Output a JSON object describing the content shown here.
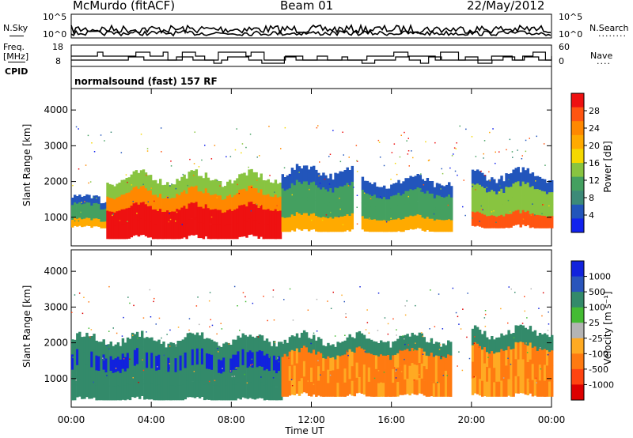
{
  "header": {
    "station": "McMurdo (fitACF)",
    "beam": "Beam 01",
    "date": "22/May/2012"
  },
  "noise_panel": {
    "left_label": "N.Sky",
    "right_label": "N.Search",
    "right_dots": "........",
    "left_ticks": [
      "10^5",
      "10^0"
    ],
    "right_ticks": [
      "10^5",
      "10^0"
    ]
  },
  "freq_panel": {
    "left_label_1": "Freq.",
    "left_label_2": "[MHz]",
    "left_ticks": [
      "18",
      "8"
    ],
    "right_label": "Nave",
    "right_dots": "....",
    "right_ticks": [
      "60",
      "0"
    ]
  },
  "cpid": {
    "label": "CPID",
    "value": "normalsound (fast) 157 RF"
  },
  "chart_data": [
    {
      "type": "heatmap",
      "title": "Power",
      "xlabel": "",
      "ylabel": "Slant Range [km]",
      "xlim": [
        "00:00",
        "00:00"
      ],
      "ylim": [
        200,
        4600
      ],
      "yticks": [
        "1000",
        "2000",
        "3000",
        "4000"
      ],
      "colorbar": {
        "label": "Power [dB]",
        "ticks": [
          "28",
          "24",
          "20",
          "16",
          "12",
          "8",
          "4"
        ],
        "colors": [
          "#ee1111",
          "#ff5511",
          "#ff8800",
          "#ffaa00",
          "#f5d800",
          "#88c440",
          "#44a060",
          "#3c8a78",
          "#2255bb",
          "#1122ee"
        ]
      },
      "echo_regions": [
        {
          "t_start": "00:00",
          "t_end": "01:45",
          "range_min": 700,
          "range_max": 1500,
          "level": "low-mid"
        },
        {
          "t_start": "01:45",
          "t_end": "10:30",
          "range_min": 400,
          "range_max": 2100,
          "level": "high (24-28 dB)"
        },
        {
          "t_start": "10:30",
          "t_end": "14:00",
          "range_min": 600,
          "range_max": 2300,
          "level": "mid"
        },
        {
          "t_start": "14:30",
          "t_end": "19:00",
          "range_min": 600,
          "range_max": 2000,
          "level": "mid"
        },
        {
          "t_start": "20:00",
          "t_end": "00:00",
          "range_min": 700,
          "range_max": 2200,
          "level": "mid-high"
        }
      ]
    },
    {
      "type": "heatmap",
      "title": "Velocity",
      "xlabel": "Time UT",
      "ylabel": "Slant Range [km]",
      "xticks": [
        "00:00",
        "04:00",
        "08:00",
        "12:00",
        "16:00",
        "20:00",
        "00:00"
      ],
      "ylim": [
        200,
        4600
      ],
      "yticks": [
        "1000",
        "2000",
        "3000",
        "4000"
      ],
      "colorbar": {
        "label": "Velocity [m s⁻¹]",
        "ticks": [
          "1000",
          "500",
          "100",
          "25",
          "-25",
          "-100",
          "-500",
          "-1000"
        ],
        "colors": [
          "#1122dd",
          "#2a55bb",
          "#338a6a",
          "#44bb33",
          "#b4b4b4",
          "#ffaa22",
          "#ff7a11",
          "#ff4411",
          "#dd0000"
        ]
      },
      "echo_regions": [
        {
          "t_start": "00:00",
          "t_end": "10:30",
          "range_min": 400,
          "range_max": 2100,
          "sign": "positive (toward, green/blue)"
        },
        {
          "t_start": "10:30",
          "t_end": "19:00",
          "range_min": 500,
          "range_max": 2100,
          "sign": "negative (away, orange)"
        },
        {
          "t_start": "20:00",
          "t_end": "00:00",
          "range_min": 500,
          "range_max": 2300,
          "sign": "negative (away, orange)"
        }
      ]
    }
  ],
  "colors": {
    "axis": "#000000",
    "background": "#ffffff"
  }
}
